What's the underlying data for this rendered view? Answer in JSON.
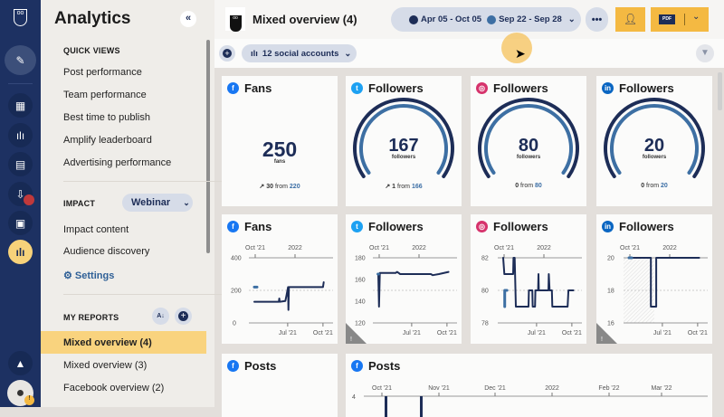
{
  "rail": {
    "icons": [
      "owl-logo",
      "compose",
      "dashboard",
      "streams",
      "planner",
      "inbox",
      "assignments",
      "analytics",
      "expand",
      "profile"
    ]
  },
  "sidebar": {
    "title": "Analytics",
    "quick_views_heading": "QUICK VIEWS",
    "quick_views": [
      "Post performance",
      "Team performance",
      "Best time to publish",
      "Amplify leaderboard",
      "Advertising performance"
    ],
    "impact_heading": "IMPACT",
    "impact_select": "Webinar",
    "impact_items": [
      "Impact content",
      "Audience discovery"
    ],
    "settings": "Settings",
    "my_reports_heading": "MY REPORTS",
    "reports": [
      {
        "label": "Mixed overview (4)",
        "selected": true
      },
      {
        "label": "Mixed overview (3)",
        "selected": false
      },
      {
        "label": "Facebook overview (2)",
        "selected": false
      }
    ]
  },
  "header": {
    "title": "Mixed overview (4)",
    "range1": "Apr 05 - Oct 05",
    "range2": "Sep 22 - Sep 28",
    "pdf": "PDF"
  },
  "toolbar": {
    "accounts": "12 social accounts"
  },
  "colors": {
    "navy": "#1d2d57",
    "light": "#3d6fa3",
    "accent": "#f4b942",
    "facebook": "#1877f2",
    "twitter": "#1da1f2",
    "instagram": "#d6336c",
    "linkedin": "#0a66c2"
  },
  "summary": [
    {
      "network": "facebook",
      "title": "Fans",
      "value": "250",
      "unit": "fans",
      "change": "30",
      "from_label": "from",
      "from": "220",
      "trend": "up",
      "gauge": false
    },
    {
      "network": "twitter",
      "title": "Followers",
      "value": "167",
      "unit": "followers",
      "change": "1",
      "from_label": "from",
      "from": "166",
      "trend": "up",
      "gauge": true
    },
    {
      "network": "instagram",
      "title": "Followers",
      "value": "80",
      "unit": "followers",
      "change": "0",
      "from_label": "from",
      "from": "80",
      "trend": "none",
      "gauge": true
    },
    {
      "network": "linkedin",
      "title": "Followers",
      "value": "20",
      "unit": "followers",
      "change": "0",
      "from_label": "from",
      "from": "20",
      "trend": "none",
      "gauge": true
    }
  ],
  "chart_data": [
    {
      "type": "line",
      "network": "facebook",
      "title": "Fans",
      "ylim": [
        0,
        400
      ],
      "yticks": [
        "400",
        "200",
        "0"
      ],
      "top_ticks": [
        "Oct '21",
        "2022"
      ],
      "bottom_ticks": [
        "Jul '21",
        "Oct '21"
      ],
      "warning": false,
      "series": [
        {
          "role": "current",
          "points": [
            [
              "2021-04-05",
              130
            ],
            [
              "2021-06-08",
              130
            ],
            [
              "2021-06-09",
              150
            ],
            [
              "2021-06-10",
              130
            ],
            [
              "2021-06-25",
              135
            ],
            [
              "2021-06-28",
              170
            ],
            [
              "2021-07-02",
              220
            ],
            [
              "2021-07-03",
              80
            ],
            [
              "2021-07-04",
              220
            ],
            [
              "2021-10-01",
              220
            ],
            [
              "2021-10-03",
              250
            ]
          ]
        },
        {
          "role": "comparison",
          "points": [
            [
              "2021-04-05",
              220
            ],
            [
              "2021-04-12",
              220
            ]
          ]
        }
      ]
    },
    {
      "type": "line",
      "network": "twitter",
      "title": "Followers",
      "ylim": [
        120,
        180
      ],
      "yticks": [
        "180",
        "160",
        "140",
        "120"
      ],
      "top_ticks": [
        "Oct '21",
        "2022"
      ],
      "bottom_ticks": [
        "Jul '21",
        "Oct '21"
      ],
      "warning": true,
      "series": [
        {
          "role": "current",
          "points": [
            [
              "2021-04-05",
              165
            ],
            [
              "2021-04-07",
              135
            ],
            [
              "2021-04-09",
              166
            ],
            [
              "2021-05-20",
              166
            ],
            [
              "2021-05-24",
              167
            ],
            [
              "2021-06-01",
              165
            ],
            [
              "2021-08-20",
              165
            ],
            [
              "2021-08-25",
              164
            ],
            [
              "2021-09-10",
              165
            ],
            [
              "2021-10-05",
              167
            ]
          ]
        },
        {
          "role": "comparison",
          "points": [
            [
              "2021-04-04",
              165
            ],
            [
              "2021-04-06",
              165
            ]
          ]
        }
      ]
    },
    {
      "type": "line",
      "network": "instagram",
      "title": "Followers",
      "ylim": [
        78,
        82
      ],
      "yticks": [
        "82",
        "80",
        "78"
      ],
      "top_ticks": [
        "Oct '21",
        "2022"
      ],
      "bottom_ticks": [
        "Jul '21",
        "Oct '21"
      ],
      "warning": false,
      "series": [
        {
          "role": "current",
          "points": [
            [
              "2021-04-05",
              82
            ],
            [
              "2021-04-08",
              81
            ],
            [
              "2021-05-01",
              81
            ],
            [
              "2021-05-02",
              82
            ],
            [
              "2021-05-05",
              82
            ],
            [
              "2021-05-08",
              79
            ],
            [
              "2021-06-10",
              79
            ],
            [
              "2021-06-11",
              80
            ],
            [
              "2021-06-20",
              80
            ],
            [
              "2021-06-21",
              79
            ],
            [
              "2021-06-27",
              79
            ],
            [
              "2021-06-28",
              80
            ],
            [
              "2021-07-05",
              80
            ],
            [
              "2021-07-06",
              81
            ],
            [
              "2021-07-07",
              80
            ],
            [
              "2021-08-01",
              80
            ],
            [
              "2021-08-02",
              81
            ],
            [
              "2021-08-04",
              80
            ],
            [
              "2021-08-10",
              80
            ],
            [
              "2021-08-11",
              79
            ],
            [
              "2021-09-20",
              79
            ],
            [
              "2021-09-22",
              80
            ],
            [
              "2021-10-05",
              80
            ]
          ]
        },
        {
          "role": "comparison",
          "points": [
            [
              "2021-04-09",
              79
            ],
            [
              "2021-04-09",
              80
            ],
            [
              "2021-04-15",
              80
            ]
          ]
        }
      ]
    },
    {
      "type": "line",
      "network": "linkedin",
      "title": "Followers",
      "ylim": [
        16,
        20
      ],
      "yticks": [
        "20",
        "18",
        "16"
      ],
      "top_ticks": [
        "Oct '21",
        "2022"
      ],
      "bottom_ticks": [
        "Jul '21",
        "Oct '21"
      ],
      "warning": true,
      "series": [
        {
          "role": "current",
          "points": [
            [
              "2021-04-05",
              20
            ],
            [
              "2021-06-01",
              20
            ],
            [
              "2021-06-01",
              17
            ],
            [
              "2021-06-15",
              17
            ],
            [
              "2021-06-15",
              20
            ],
            [
              "2021-10-05",
              20
            ]
          ]
        },
        {
          "role": "comparison",
          "points": [
            [
              "2021-04-05",
              20
            ],
            [
              "2021-04-12",
              20
            ]
          ]
        }
      ]
    },
    {
      "type": "bar",
      "network": "facebook",
      "title": "Posts",
      "yticks": [
        "4"
      ],
      "top_ticks": [
        "Oct '21",
        "Nov '21",
        "Dec '21",
        "2022",
        "Feb '22",
        "Mar '22"
      ]
    }
  ],
  "posts_small": {
    "network": "facebook",
    "title": "Posts"
  }
}
